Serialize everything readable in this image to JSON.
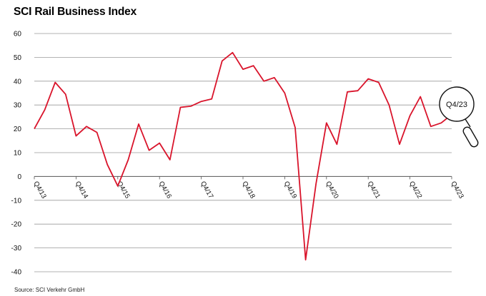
{
  "chart_data": {
    "type": "line",
    "title": "SCI Rail Business Index",
    "source": "Source: SCI Verkehr GmbH",
    "xlabel": "",
    "ylabel": "",
    "ylim": [
      -40,
      60
    ],
    "yticks": [
      60,
      50,
      40,
      30,
      20,
      10,
      0,
      -10,
      -20,
      -30,
      -40
    ],
    "grid": true,
    "x_tick_labels": [
      "Q4/13",
      "Q4/14",
      "Q4/15",
      "Q4/16",
      "Q4/17",
      "Q4/18",
      "Q4/19",
      "Q4/20",
      "Q4/21",
      "Q4/22",
      "Q4/23"
    ],
    "x_tick_indices": [
      0,
      4,
      8,
      12,
      16,
      20,
      24,
      28,
      32,
      36,
      40
    ],
    "series": [
      {
        "color": "#d9142b",
        "values": [
          20,
          28,
          39.5,
          34.5,
          17,
          21,
          18.5,
          5,
          -4,
          7,
          22,
          11,
          14,
          7,
          29,
          29.5,
          31.5,
          32.5,
          48.5,
          52,
          45,
          46.5,
          40,
          41.5,
          35,
          20.5,
          -35,
          -3,
          22.5,
          13.5,
          35.5,
          36,
          41,
          39.5,
          30,
          13.5,
          25.5,
          33.5,
          21,
          22.5,
          26
        ]
      }
    ],
    "annotation": {
      "label": "Q4/23",
      "icon": "magnifier-icon"
    }
  }
}
